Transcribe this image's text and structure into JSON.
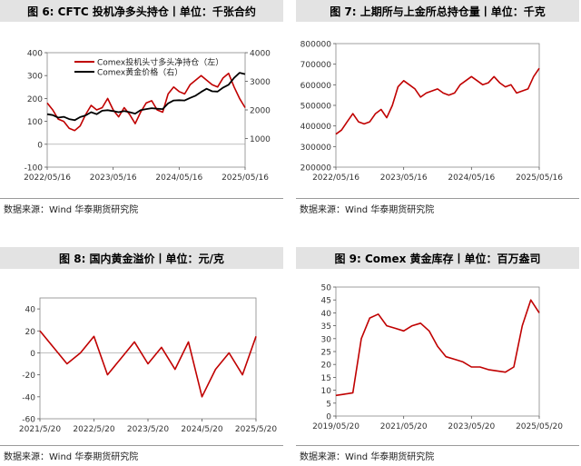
{
  "charts": [
    {
      "title": "图 6: CFTC 投机净多头持仓丨单位：千张合约",
      "source": "数据来源：Wind 华泰期货研究院",
      "legend": [
        "Comex投机头寸多头净持仓（左）",
        "Comex黄金价格（右）"
      ],
      "yticks_left": [
        "400",
        "300",
        "200",
        "100",
        "0",
        "-100"
      ],
      "yticks_right": [
        "4000",
        "3000",
        "2000",
        "1000"
      ],
      "xticks": [
        "2022/05/16",
        "2023/05/16",
        "2024/05/16",
        "2025/05/16"
      ]
    },
    {
      "title": "图 7: 上期所与上金所总持仓量丨单位：千克",
      "source": "数据来源：Wind 华泰期货研究院",
      "yticks": [
        "800000",
        "700000",
        "600000",
        "500000",
        "400000",
        "300000",
        "200000"
      ],
      "xticks": [
        "2022/05/16",
        "2023/05/16",
        "2024/05/16",
        "2025/05/16"
      ]
    },
    {
      "title": "图 8: 国内黄金溢价丨单位：元/克",
      "source": "数据来源：Wind 华泰期货研究院",
      "yticks": [
        "40",
        "20",
        "0",
        "-20",
        "-40",
        "-60"
      ],
      "xticks": [
        "2021/5/20",
        "2022/5/20",
        "2023/5/20",
        "2024/5/20",
        "2025/5/20"
      ]
    },
    {
      "title": "图 9: Comex 黄金库存丨单位：百万盎司",
      "source": "数据来源：Wind 华泰期货研究院",
      "yticks": [
        "50",
        "45",
        "40",
        "35",
        "30",
        "25",
        "20",
        "15",
        "10",
        "5",
        "0"
      ],
      "xticks": [
        "2019/05/20",
        "2021/05/20",
        "2023/05/20",
        "2025/05/20"
      ]
    }
  ],
  "chart_data": [
    {
      "type": "line",
      "x": [
        "2022-05",
        "2022-06",
        "2022-07",
        "2022-08",
        "2022-09",
        "2022-10",
        "2022-11",
        "2022-12",
        "2023-01",
        "2023-02",
        "2023-03",
        "2023-04",
        "2023-05",
        "2023-06",
        "2023-07",
        "2023-08",
        "2023-09",
        "2023-10",
        "2023-11",
        "2023-12",
        "2024-01",
        "2024-02",
        "2024-03",
        "2024-04",
        "2024-05",
        "2024-06",
        "2024-07",
        "2024-08",
        "2024-09",
        "2024-10",
        "2024-11",
        "2024-12",
        "2025-01",
        "2025-02",
        "2025-03",
        "2025-04",
        "2025-05"
      ],
      "series": [
        {
          "name": "Comex投机头寸多头净持仓（左）",
          "axis": "left",
          "color": "#c00000",
          "values": [
            180,
            150,
            110,
            100,
            70,
            60,
            80,
            130,
            170,
            150,
            160,
            200,
            150,
            120,
            160,
            130,
            90,
            140,
            180,
            190,
            150,
            140,
            220,
            250,
            230,
            220,
            260,
            280,
            300,
            280,
            260,
            250,
            290,
            310,
            250,
            200,
            160
          ]
        },
        {
          "name": "Comex黄金价格（右）",
          "axis": "right",
          "color": "#000000",
          "values": [
            1850,
            1820,
            1730,
            1760,
            1680,
            1640,
            1750,
            1810,
            1920,
            1850,
            1970,
            1990,
            1960,
            1920,
            1960,
            1920,
            1870,
            1990,
            2030,
            2060,
            2040,
            2030,
            2230,
            2330,
            2340,
            2330,
            2420,
            2500,
            2630,
            2740,
            2650,
            2640,
            2780,
            2880,
            3120,
            3300,
            3250
          ]
        }
      ],
      "ylim_left": [
        -100,
        400
      ],
      "ylim_right": [
        0,
        4000
      ],
      "legend_position": "top-left"
    },
    {
      "type": "line",
      "x": [
        "2022-05",
        "2022-06",
        "2022-07",
        "2022-08",
        "2022-09",
        "2022-10",
        "2022-11",
        "2022-12",
        "2023-01",
        "2023-02",
        "2023-03",
        "2023-04",
        "2023-05",
        "2023-06",
        "2023-07",
        "2023-08",
        "2023-09",
        "2023-10",
        "2023-11",
        "2023-12",
        "2024-01",
        "2024-02",
        "2024-03",
        "2024-04",
        "2024-05",
        "2024-06",
        "2024-07",
        "2024-08",
        "2024-09",
        "2024-10",
        "2024-11",
        "2024-12",
        "2025-01",
        "2025-02",
        "2025-03",
        "2025-04",
        "2025-05"
      ],
      "series": [
        {
          "color": "#c00000",
          "values": [
            360000,
            380000,
            420000,
            460000,
            420000,
            410000,
            420000,
            460000,
            480000,
            440000,
            500000,
            590000,
            620000,
            600000,
            580000,
            540000,
            560000,
            570000,
            580000,
            560000,
            550000,
            560000,
            600000,
            620000,
            640000,
            620000,
            600000,
            610000,
            640000,
            610000,
            590000,
            600000,
            560000,
            570000,
            580000,
            640000,
            680000
          ]
        }
      ],
      "ylim": [
        200000,
        800000
      ]
    },
    {
      "type": "line",
      "x": [
        "2021-05",
        "2021-08",
        "2021-11",
        "2022-02",
        "2022-05",
        "2022-08",
        "2022-11",
        "2023-02",
        "2023-05",
        "2023-08",
        "2023-11",
        "2024-02",
        "2024-05",
        "2024-08",
        "2024-11",
        "2025-02",
        "2025-05"
      ],
      "series": [
        {
          "color": "#c00000",
          "values": [
            20,
            5,
            -10,
            0,
            15,
            -20,
            -5,
            10,
            -10,
            5,
            -15,
            10,
            -40,
            -15,
            0,
            -20,
            15
          ]
        }
      ],
      "ylim": [
        -60,
        50
      ]
    },
    {
      "type": "line",
      "x": [
        "2019-05",
        "2019-11",
        "2020-03",
        "2020-06",
        "2020-09",
        "2020-12",
        "2021-03",
        "2021-06",
        "2021-09",
        "2021-12",
        "2022-03",
        "2022-06",
        "2022-09",
        "2022-12",
        "2023-03",
        "2023-06",
        "2023-09",
        "2023-12",
        "2024-03",
        "2024-06",
        "2024-09",
        "2024-12",
        "2025-02",
        "2025-04",
        "2025-05"
      ],
      "series": [
        {
          "color": "#c00000",
          "values": [
            8,
            8.5,
            9,
            30,
            38,
            39.5,
            35,
            34,
            33,
            35,
            36,
            33,
            27,
            23,
            22,
            21,
            19,
            19,
            18,
            17.5,
            17,
            19,
            35,
            45,
            40
          ]
        }
      ],
      "ylim": [
        0,
        50
      ]
    }
  ]
}
